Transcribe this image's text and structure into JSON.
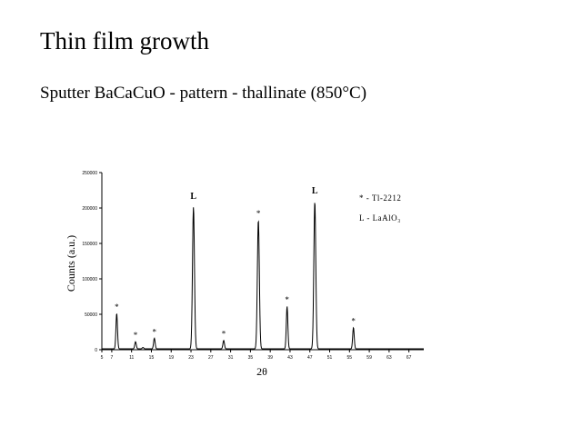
{
  "slide": {
    "title": "Thin film growth",
    "subtitle": "Sputter BaCaCuO - pattern - thallinate (850°C)"
  },
  "chart_data": {
    "type": "line",
    "xlabel": "2θ",
    "ylabel": "Counts (a.u.)",
    "xlim": [
      5,
      70
    ],
    "ylim": [
      0,
      250000
    ],
    "x_ticks": [
      5,
      7,
      11,
      15,
      19,
      23,
      27,
      31,
      35,
      39,
      43,
      47,
      51,
      55,
      59,
      63,
      67
    ],
    "x_tick_labels": [
      "5",
      "7",
      "11",
      "15",
      "19",
      "23",
      "27",
      "31",
      "35",
      "39",
      "43",
      "47",
      "51",
      "55",
      "59",
      "63",
      "67"
    ],
    "y_ticks": [
      0,
      50000,
      100000,
      150000,
      200000,
      250000
    ],
    "y_tick_labels": [
      "0",
      "50000",
      "100000",
      "150000",
      "200000",
      "250000"
    ],
    "legend": [
      "* - Tl-2212",
      "L - LaAlO₃"
    ],
    "legend_position": "top-right",
    "series": [
      {
        "peaks": [
          {
            "x": 8.0,
            "y": 50000,
            "label": "*"
          },
          {
            "x": 11.8,
            "y": 10000,
            "label": "*"
          },
          {
            "x": 13.3,
            "y": 2000,
            "label": ""
          },
          {
            "x": 15.6,
            "y": 15000,
            "label": "*"
          },
          {
            "x": 23.5,
            "y": 200000,
            "label": "L"
          },
          {
            "x": 29.6,
            "y": 12000,
            "label": "*"
          },
          {
            "x": 36.6,
            "y": 182000,
            "label": "*"
          },
          {
            "x": 42.4,
            "y": 60000,
            "label": "*"
          },
          {
            "x": 48.0,
            "y": 208000,
            "label": "L"
          },
          {
            "x": 55.8,
            "y": 30000,
            "label": "*"
          }
        ]
      }
    ]
  }
}
